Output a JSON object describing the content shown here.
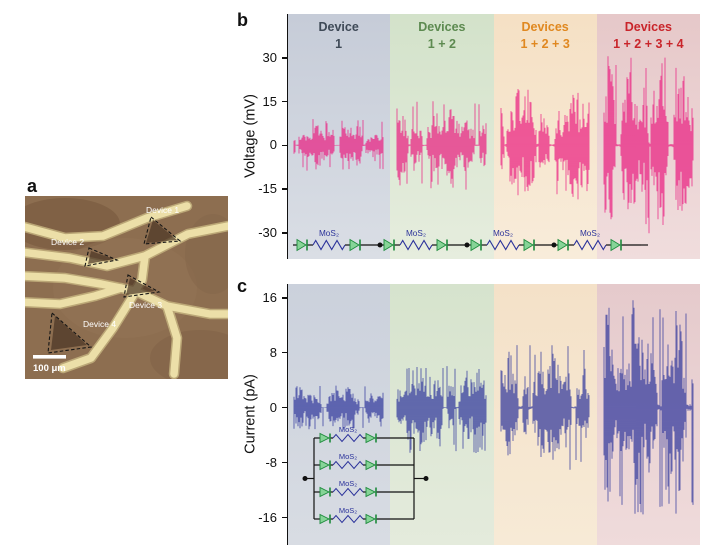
{
  "figure": {
    "panel_a_label": "a",
    "panel_b_label": "b",
    "panel_c_label": "c"
  },
  "micrograph": {
    "devices": [
      "Device 1",
      "Device 2",
      "Device 3",
      "Device 4"
    ],
    "scale_bar": "100 μm"
  },
  "colors": {
    "voltage_trace": "#ea1a7f",
    "current_trace": "#2c339b",
    "diode_fill": "#86d497",
    "diode_stroke": "#1d8a3c",
    "wire": "#111111",
    "mos2_label": "#2c339b"
  },
  "chart_data": [
    {
      "id": "voltage",
      "type": "line",
      "title": "",
      "xlabel": "",
      "ylabel": "Voltage (mV)",
      "units": "mV",
      "ylim": [
        -39,
        45
      ],
      "yticks": [
        30,
        15,
        0,
        -15,
        -30
      ],
      "grid": false,
      "seed": 11,
      "signal_color": "#ea1a7f",
      "bands": [
        {
          "label_line1": "Device",
          "label_line2": "1",
          "label_color": "#3f4a57",
          "bg_top": "#c6ccd8",
          "bg_bottom": "#dadee5",
          "peak_amplitude": 9
        },
        {
          "label_line1": "Devices",
          "label_line2": "1 + 2",
          "label_color": "#5d8a50",
          "bg_top": "#d3e2ca",
          "bg_bottom": "#e6edde",
          "peak_amplitude": 15
        },
        {
          "label_line1": "Devices",
          "label_line2": "1 + 2 + 3",
          "label_color": "#e08820",
          "bg_top": "#f5e0c4",
          "bg_bottom": "#f8ecda",
          "peak_amplitude": 19
        },
        {
          "label_line1": "Devices",
          "label_line2": "1 + 2 + 3 + 4",
          "label_color": "#c9252b",
          "bg_top": "#e6c8c9",
          "bg_bottom": "#f0dddd",
          "peak_amplitude": 30
        }
      ],
      "circuit": {
        "topology": "series",
        "unit_labels": [
          "MoS₂",
          "MoS₂",
          "MoS₂",
          "MoS₂"
        ]
      }
    },
    {
      "id": "current",
      "type": "line",
      "title": "",
      "xlabel": "",
      "ylabel": "Current (pA)",
      "units": "pA",
      "ylim": [
        -20,
        18
      ],
      "yticks": [
        16,
        8,
        0,
        -8,
        -16
      ],
      "grid": false,
      "seed": 23,
      "signal_color": "#2c339b",
      "bands": [
        {
          "bg_top": "#cbd1dc",
          "bg_bottom": "#d8dce3",
          "peak_amplitude": 3.2
        },
        {
          "bg_top": "#d6e3cd",
          "bg_bottom": "#e4ebdc",
          "peak_amplitude": 6.5
        },
        {
          "bg_top": "#f4e1c8",
          "bg_bottom": "#f7ead6",
          "peak_amplitude": 9
        },
        {
          "bg_top": "#e5cacc",
          "bg_bottom": "#efdbdb",
          "peak_amplitude": 15.5
        }
      ],
      "circuit": {
        "topology": "parallel",
        "unit_labels": [
          "MoS₂",
          "MoS₂",
          "MoS₂",
          "MoS₂"
        ]
      }
    }
  ]
}
